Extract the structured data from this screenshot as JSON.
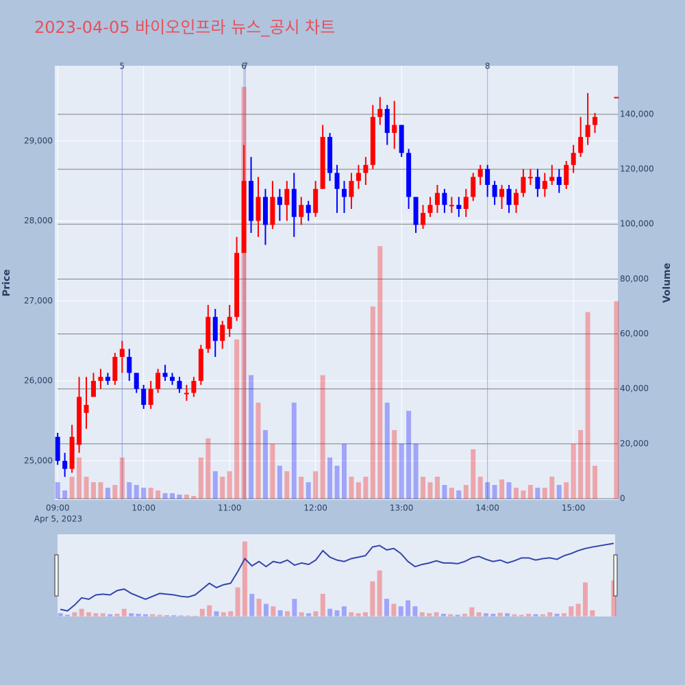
{
  "chart_data": {
    "type": "candlestick",
    "title": "2023-04-05 바이오인프라 뉴스_공시 차트",
    "y_label": "Price",
    "y2_label": "Volume",
    "x_date_label": "Apr 5, 2023",
    "up_color": "#ff0000",
    "down_color": "#0000ff",
    "xlim": [
      "2023-04-05 08:58",
      "2023-04-05 15:31"
    ],
    "xticks": [
      {
        "value": "2023-04-05 09:00",
        "label": "09:00"
      },
      {
        "value": "2023-04-05 10:00",
        "label": "10:00"
      },
      {
        "value": "2023-04-05 11:00",
        "label": "11:00"
      },
      {
        "value": "2023-04-05 12:00",
        "label": "12:00"
      },
      {
        "value": "2023-04-05 13:00",
        "label": "13:00"
      },
      {
        "value": "2023-04-05 14:00",
        "label": "14:00"
      },
      {
        "value": "2023-04-05 15:00",
        "label": "15:00"
      }
    ],
    "ylim": [
      24510,
      29940
    ],
    "yticks": [
      {
        "value": 25000,
        "label": "25,000"
      },
      {
        "value": 26000,
        "label": "26,000"
      },
      {
        "value": 27000,
        "label": "27,000"
      },
      {
        "value": 28000,
        "label": "28,000"
      },
      {
        "value": 29000,
        "label": "29,000"
      }
    ],
    "y2lim": [
      -500,
      157700
    ],
    "y2ticks": [
      0,
      {
        "value": 20000,
        "label": "20,000"
      },
      {
        "value": 40000,
        "label": "40,000"
      },
      {
        "value": 60000,
        "label": "60,000"
      },
      {
        "value": 80000,
        "label": "80,000"
      },
      {
        "value": 100000,
        "label": "100,000"
      },
      {
        "value": 120000,
        "label": "120,000"
      },
      {
        "value": 140000,
        "label": "140,000"
      }
    ],
    "events": [
      {
        "x": "2023-04-05 09:45",
        "label": "5"
      },
      {
        "x": "2023-04-05 11:10",
        "label": "6"
      },
      {
        "x": "2023-04-05 11:11",
        "label": "7"
      },
      {
        "x": "2023-04-05 14:00",
        "label": "8"
      }
    ],
    "x": [
      "2023-04-05 09:00",
      "2023-04-05 09:05",
      "2023-04-05 09:10",
      "2023-04-05 09:15",
      "2023-04-05 09:20",
      "2023-04-05 09:25",
      "2023-04-05 09:30",
      "2023-04-05 09:35",
      "2023-04-05 09:40",
      "2023-04-05 09:45",
      "2023-04-05 09:50",
      "2023-04-05 09:55",
      "2023-04-05 10:00",
      "2023-04-05 10:05",
      "2023-04-05 10:10",
      "2023-04-05 10:15",
      "2023-04-05 10:20",
      "2023-04-05 10:25",
      "2023-04-05 10:30",
      "2023-04-05 10:35",
      "2023-04-05 10:40",
      "2023-04-05 10:45",
      "2023-04-05 10:50",
      "2023-04-05 10:55",
      "2023-04-05 11:00",
      "2023-04-05 11:05",
      "2023-04-05 11:10",
      "2023-04-05 11:15",
      "2023-04-05 11:20",
      "2023-04-05 11:25",
      "2023-04-05 11:30",
      "2023-04-05 11:35",
      "2023-04-05 11:40",
      "2023-04-05 11:45",
      "2023-04-05 11:50",
      "2023-04-05 11:55",
      "2023-04-05 12:00",
      "2023-04-05 12:05",
      "2023-04-05 12:10",
      "2023-04-05 12:15",
      "2023-04-05 12:20",
      "2023-04-05 12:25",
      "2023-04-05 12:30",
      "2023-04-05 12:35",
      "2023-04-05 12:40",
      "2023-04-05 12:45",
      "2023-04-05 12:50",
      "2023-04-05 12:55",
      "2023-04-05 13:00",
      "2023-04-05 13:05",
      "2023-04-05 13:10",
      "2023-04-05 13:15",
      "2023-04-05 13:20",
      "2023-04-05 13:25",
      "2023-04-05 13:30",
      "2023-04-05 13:35",
      "2023-04-05 13:40",
      "2023-04-05 13:45",
      "2023-04-05 13:50",
      "2023-04-05 13:55",
      "2023-04-05 14:00",
      "2023-04-05 14:05",
      "2023-04-05 14:10",
      "2023-04-05 14:15",
      "2023-04-05 14:20",
      "2023-04-05 14:25",
      "2023-04-05 14:30",
      "2023-04-05 14:35",
      "2023-04-05 14:40",
      "2023-04-05 14:45",
      "2023-04-05 14:50",
      "2023-04-05 14:55",
      "2023-04-05 15:00",
      "2023-04-05 15:05",
      "2023-04-05 15:10",
      "2023-04-05 15:15",
      "2023-04-05 15:30"
    ],
    "open": [
      25300,
      25000,
      24900,
      25200,
      25600,
      25800,
      26000,
      26050,
      26000,
      26300,
      26300,
      26100,
      25900,
      25700,
      25900,
      26100,
      26050,
      26000,
      25850,
      25850,
      26000,
      26400,
      26800,
      26500,
      26650,
      26800,
      27600,
      28500,
      28000,
      28300,
      27950,
      28300,
      28200,
      28400,
      28050,
      28200,
      28100,
      28400,
      29050,
      28600,
      28400,
      28300,
      28500,
      28600,
      28700,
      29300,
      29400,
      29100,
      29200,
      28850,
      28300,
      27950,
      28100,
      28200,
      28350,
      28200,
      28200,
      28150,
      28300,
      28550,
      28650,
      28450,
      28300,
      28400,
      28200,
      28350,
      28550,
      28550,
      28400,
      28500,
      28550,
      28450,
      28700,
      28850,
      29050,
      29200,
      29550
    ],
    "high": [
      25350,
      25100,
      25450,
      26050,
      26050,
      26100,
      26150,
      26100,
      26350,
      26500,
      26400,
      26100,
      25950,
      26000,
      26150,
      26200,
      26100,
      26050,
      25950,
      26050,
      26450,
      26950,
      26900,
      26750,
      26950,
      27800,
      28950,
      28800,
      28550,
      28400,
      28500,
      28400,
      28500,
      28600,
      28300,
      28250,
      28500,
      29200,
      29100,
      28700,
      28500,
      28600,
      28700,
      28800,
      29450,
      29550,
      29450,
      29500,
      29200,
      28900,
      28300,
      28200,
      28300,
      28450,
      28400,
      28300,
      28300,
      28400,
      28600,
      28700,
      28700,
      28500,
      28450,
      28450,
      28400,
      28650,
      28650,
      28650,
      28600,
      28700,
      28650,
      28750,
      28950,
      29300,
      29600,
      29350,
      29550
    ],
    "low": [
      24950,
      24800,
      24850,
      25100,
      25400,
      25800,
      25900,
      25950,
      25950,
      26100,
      26000,
      25850,
      25650,
      25650,
      25850,
      26000,
      25950,
      25850,
      25750,
      25800,
      25950,
      26350,
      26300,
      26400,
      26550,
      26750,
      27600,
      27850,
      27800,
      27700,
      27900,
      28000,
      28000,
      27800,
      27950,
      28000,
      28050,
      28400,
      28500,
      28100,
      28100,
      28150,
      28400,
      28450,
      28650,
      29200,
      28950,
      28900,
      28800,
      28150,
      27850,
      27900,
      28050,
      28100,
      28100,
      28100,
      28050,
      28050,
      28250,
      28450,
      28300,
      28200,
      28150,
      28100,
      28100,
      28300,
      28450,
      28300,
      28300,
      28450,
      28350,
      28400,
      28600,
      28800,
      28950,
      29100,
      29550
    ],
    "close": [
      25000,
      24900,
      25300,
      25800,
      25700,
      26000,
      26050,
      26000,
      26300,
      26400,
      26100,
      25900,
      25700,
      25900,
      26100,
      26050,
      26000,
      25900,
      25850,
      26000,
      26400,
      26800,
      26500,
      26700,
      26800,
      27600,
      28500,
      28000,
      28300,
      27950,
      28300,
      28200,
      28400,
      28050,
      28200,
      28100,
      28400,
      29050,
      28600,
      28400,
      28300,
      28500,
      28600,
      28700,
      29300,
      29400,
      29100,
      29200,
      28850,
      28300,
      27950,
      28100,
      28200,
      28350,
      28200,
      28200,
      28150,
      28300,
      28550,
      28650,
      28450,
      28300,
      28400,
      28200,
      28350,
      28550,
      28550,
      28400,
      28500,
      28550,
      28450,
      28700,
      28850,
      29050,
      29200,
      29300,
      29550
    ],
    "volume": [
      6000,
      3000,
      8000,
      15000,
      8000,
      6000,
      6000,
      4000,
      5000,
      15000,
      6000,
      5000,
      4000,
      4000,
      3000,
      2000,
      2000,
      1500,
      1500,
      1000,
      15000,
      22000,
      10000,
      8000,
      10000,
      58000,
      150000,
      45000,
      35000,
      25000,
      20000,
      12000,
      10000,
      35000,
      8000,
      6000,
      10000,
      45000,
      15000,
      12000,
      20000,
      8000,
      6000,
      8000,
      70000,
      92000,
      35000,
      25000,
      20000,
      32000,
      20000,
      8000,
      6000,
      8000,
      5000,
      4000,
      3000,
      5000,
      18000,
      8000,
      6000,
      5000,
      7000,
      6000,
      4000,
      3000,
      5000,
      4000,
      4000,
      8000,
      5000,
      6000,
      20000,
      25000,
      68000,
      12000,
      72000
    ]
  }
}
